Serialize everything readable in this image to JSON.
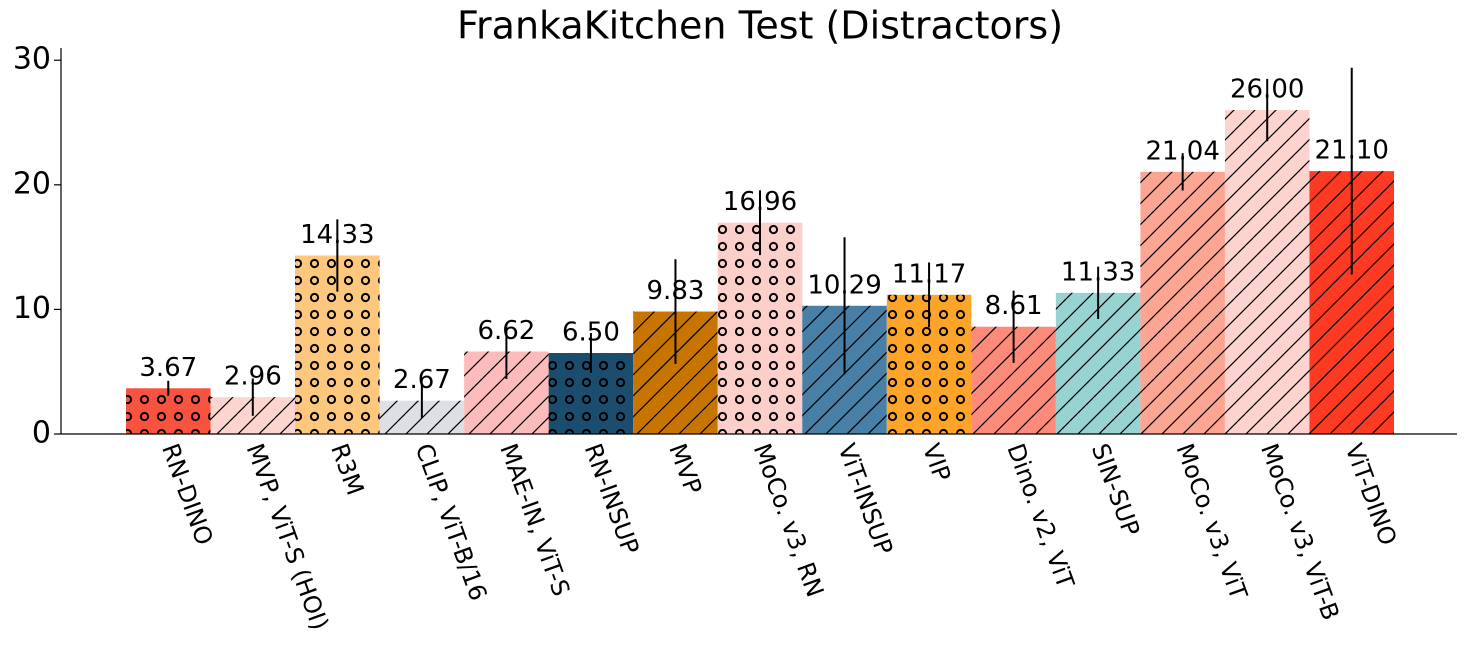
{
  "chart_data": {
    "type": "bar",
    "title": "FrankaKitchen Test (Distractors)",
    "categories": [
      "RN-DINO",
      "MVP, ViT-S (HOI)",
      "R3M",
      "CLIP, ViT-B/16",
      "MAE-IN, ViT-S",
      "RN-INSUP",
      "MVP",
      "MoCo. v3, RN",
      "ViT-INSUP",
      "VIP",
      "Dino. v2, ViT",
      "SIN-SUP",
      "MoCo. v3, ViT",
      "MoCo. v3, ViT-B",
      "ViT-DINO"
    ],
    "values": [
      3.67,
      2.96,
      14.33,
      2.67,
      6.62,
      6.5,
      9.83,
      16.96,
      10.29,
      11.17,
      8.61,
      11.33,
      21.04,
      26.0,
      21.1
    ],
    "value_labels": [
      "3.67",
      "2.96",
      "14.33",
      "2.67",
      "6.62",
      "6.50",
      "9.83",
      "16.96",
      "10.29",
      "11.17",
      "8.61",
      "11.33",
      "21.04",
      "26.00",
      "21.10"
    ],
    "errors": [
      0.6,
      1.5,
      2.9,
      1.4,
      2.2,
      1.6,
      4.2,
      2.6,
      5.5,
      2.6,
      2.9,
      2.1,
      1.5,
      2.5,
      8.3
    ],
    "colors": [
      "#f8533f",
      "#fcd5d0",
      "#fdc77e",
      "#dcdfe3",
      "#fdbcbc",
      "#1a4d6e",
      "#c87400",
      "#fdcfcb",
      "#477fa6",
      "#fea428",
      "#fe8a7a",
      "#96d3d1",
      "#fda593",
      "#fdd3cf",
      "#fe3a22"
    ],
    "hatches": [
      "o",
      "/",
      "o",
      "/",
      "/",
      "o",
      "/",
      "o",
      "/",
      "o",
      "/",
      "/",
      "/",
      "/",
      "/"
    ],
    "ylim": [
      0,
      30.5
    ],
    "yticks": [
      0,
      10,
      20,
      30
    ]
  }
}
